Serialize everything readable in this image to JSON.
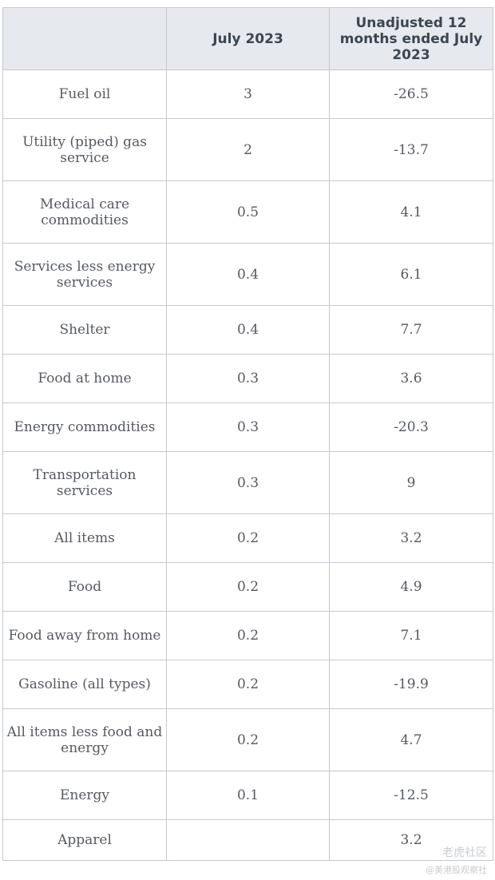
{
  "header": {
    "col1": "",
    "col2": "July 2023",
    "col3": "Unadjusted 12 months ended July 2023"
  },
  "rows": [
    {
      "item": "Fuel oil",
      "july": "3",
      "unadj": "-26.5"
    },
    {
      "item": "Utility (piped) gas service",
      "july": "2",
      "unadj": "-13.7"
    },
    {
      "item": "Medical care commodities",
      "july": "0.5",
      "unadj": "4.1"
    },
    {
      "item": "Services less energy services",
      "july": "0.4",
      "unadj": "6.1"
    },
    {
      "item": "Shelter",
      "july": "0.4",
      "unadj": "7.7"
    },
    {
      "item": "Food at home",
      "july": "0.3",
      "unadj": "3.6"
    },
    {
      "item": "Energy commodities",
      "july": "0.3",
      "unadj": "-20.3"
    },
    {
      "item": "Transportation services",
      "july": "0.3",
      "unadj": "9"
    },
    {
      "item": "All items",
      "july": "0.2",
      "unadj": "3.2"
    },
    {
      "item": "Food",
      "july": "0.2",
      "unadj": "4.9"
    },
    {
      "item": "Food away from home",
      "july": "0.2",
      "unadj": "7.1"
    },
    {
      "item": "Gasoline (all types)",
      "july": "0.2",
      "unadj": "-19.9"
    },
    {
      "item": "All items less food and energy",
      "july": "0.2",
      "unadj": "4.7"
    },
    {
      "item": "Energy",
      "july": "0.1",
      "unadj": "-12.5"
    },
    {
      "item": "Apparel",
      "july": "",
      "unadj": "3.2"
    }
  ],
  "watermark": {
    "line1": "老虎社区",
    "line2": "@美港股观察社"
  }
}
